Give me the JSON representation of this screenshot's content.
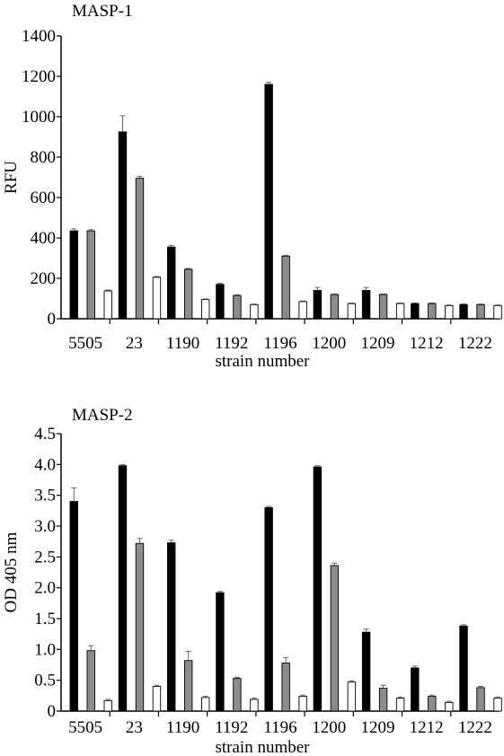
{
  "chart_data": [
    {
      "type": "bar",
      "title": "MASP-1",
      "xlabel": "strain number",
      "ylabel": "RFU",
      "ylim": [
        0,
        1400
      ],
      "yticks": [
        0,
        200,
        400,
        600,
        800,
        1000,
        1200,
        1400
      ],
      "categories": [
        "5505",
        "23",
        "1190",
        "1192",
        "1196",
        "1200",
        "1209",
        "1212",
        "1222"
      ],
      "grid": false,
      "series": [
        {
          "color": "#000000",
          "values": [
            435,
            925,
            355,
            170,
            1160,
            140,
            140,
            75,
            70
          ],
          "errors": [
            10,
            80,
            8,
            5,
            10,
            15,
            15,
            3,
            3
          ]
        },
        {
          "color": "#8c8c8c",
          "values": [
            435,
            695,
            245,
            115,
            310,
            120,
            120,
            75,
            70
          ],
          "errors": [
            6,
            10,
            4,
            4,
            4,
            3,
            3,
            3,
            3
          ]
        },
        {
          "color": "#ffffff",
          "values": [
            138,
            205,
            95,
            70,
            85,
            75,
            75,
            65,
            65
          ],
          "errors": [
            4,
            4,
            3,
            3,
            3,
            3,
            3,
            3,
            3
          ]
        }
      ]
    },
    {
      "type": "bar",
      "title": "MASP-2",
      "xlabel": "strain number",
      "ylabel": "OD 405 nm",
      "ylim": [
        0,
        4.5
      ],
      "yticks": [
        "0",
        "0.5",
        "1.0",
        "1.5",
        "2.0",
        "2.5",
        "3.0",
        "3.5",
        "4.0",
        "4.5"
      ],
      "categories": [
        "5505",
        "23",
        "1190",
        "1192",
        "1196",
        "1200",
        "1209",
        "1212",
        "1222"
      ],
      "grid": false,
      "series": [
        {
          "color": "#000000",
          "values": [
            3.4,
            3.98,
            2.73,
            1.92,
            3.3,
            3.96,
            1.28,
            0.7,
            1.38
          ],
          "errors": [
            0.22,
            0.02,
            0.04,
            0.02,
            0.02,
            0.02,
            0.05,
            0.03,
            0.02
          ]
        },
        {
          "color": "#8c8c8c",
          "values": [
            0.98,
            2.72,
            0.82,
            0.53,
            0.78,
            2.36,
            0.37,
            0.24,
            0.38
          ],
          "errors": [
            0.08,
            0.08,
            0.15,
            0.02,
            0.09,
            0.04,
            0.05,
            0.02,
            0.02
          ]
        },
        {
          "color": "#ffffff",
          "values": [
            0.17,
            0.4,
            0.22,
            0.19,
            0.24,
            0.47,
            0.21,
            0.14,
            0.21
          ],
          "errors": [
            0.02,
            0.02,
            0.02,
            0.02,
            0.02,
            0.02,
            0.02,
            0.02,
            0.02
          ]
        }
      ]
    }
  ]
}
